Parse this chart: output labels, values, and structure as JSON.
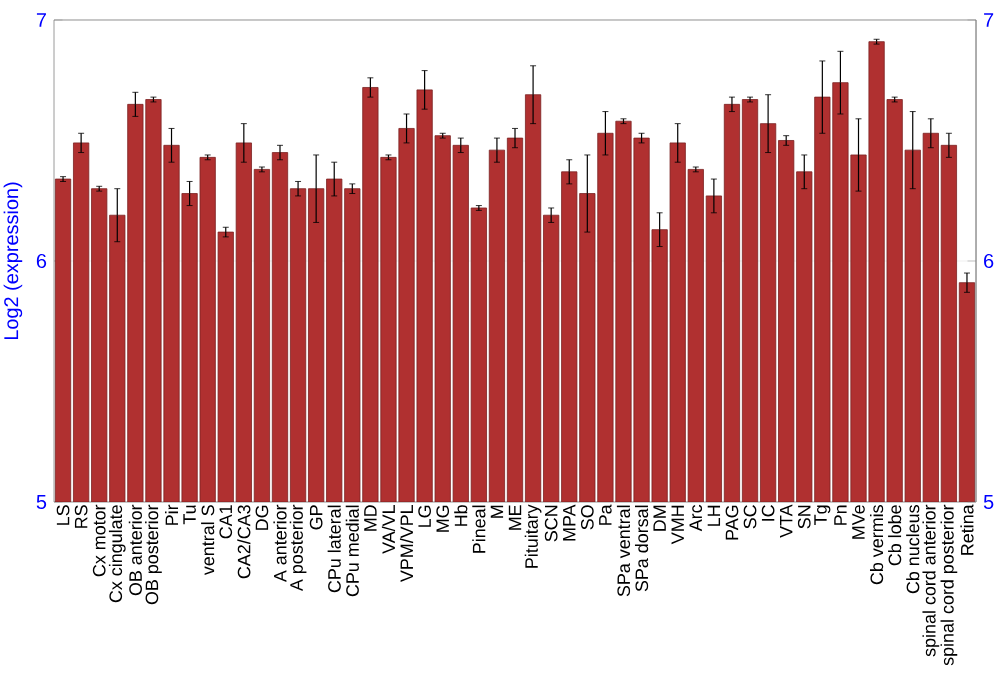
{
  "chart_data": {
    "type": "bar",
    "ylabel": "Log2 (expression)",
    "categories": [
      "LS",
      "RS",
      "Cx motor",
      "Cx cingulate",
      "OB anterior",
      "OB posterior",
      "Pir",
      "Tu",
      "ventral S",
      "CA1",
      "CA2/CA3",
      "DG",
      "A anterior",
      "A posterior",
      "GP",
      "CPu lateral",
      "CPu medial",
      "MD",
      "VA/VL",
      "VPM/VPL",
      "LG",
      "MG",
      "Hb",
      "Pineal",
      "M",
      "ME",
      "Pituitary",
      "SCN",
      "MPA",
      "SO",
      "Pa",
      "SPa ventral",
      "SPa dorsal",
      "DM",
      "VMH",
      "Arc",
      "LH",
      "PAG",
      "SC",
      "IC",
      "VTA",
      "SN",
      "Tg",
      "Pn",
      "MVe",
      "Cb vermis",
      "Cb lobe",
      "Cb nucleus",
      "spinal cord anterior",
      "spinal cord posterior",
      "Retina"
    ],
    "values": [
      6.34,
      6.49,
      6.3,
      6.19,
      6.65,
      6.67,
      6.48,
      6.28,
      6.43,
      6.12,
      6.49,
      6.38,
      6.45,
      6.3,
      6.3,
      6.34,
      6.3,
      6.72,
      6.43,
      6.55,
      6.71,
      6.52,
      6.48,
      6.22,
      6.46,
      6.51,
      6.69,
      6.19,
      6.37,
      6.28,
      6.53,
      6.58,
      6.51,
      6.13,
      6.49,
      6.38,
      6.27,
      6.65,
      6.67,
      6.57,
      6.5,
      6.37,
      6.68,
      6.74,
      6.44,
      6.91,
      6.67,
      6.46,
      6.53,
      6.48,
      5.91
    ],
    "errors": [
      0.01,
      0.04,
      0.01,
      0.11,
      0.05,
      0.01,
      0.07,
      0.05,
      0.01,
      0.02,
      0.08,
      0.01,
      0.03,
      0.03,
      0.14,
      0.07,
      0.02,
      0.04,
      0.01,
      0.06,
      0.08,
      0.01,
      0.03,
      0.01,
      0.05,
      0.04,
      0.12,
      0.03,
      0.05,
      0.16,
      0.09,
      0.01,
      0.02,
      0.07,
      0.08,
      0.01,
      0.07,
      0.03,
      0.01,
      0.12,
      0.02,
      0.07,
      0.15,
      0.13,
      0.15,
      0.01,
      0.01,
      0.16,
      0.06,
      0.05,
      0.04
    ],
    "color": "#b03030",
    "ylim": [
      5,
      7
    ],
    "yticks": [
      5,
      6,
      7
    ],
    "y2lim": [
      5,
      7
    ],
    "y2ticks": [
      5,
      6,
      7
    ],
    "grid": "y"
  }
}
